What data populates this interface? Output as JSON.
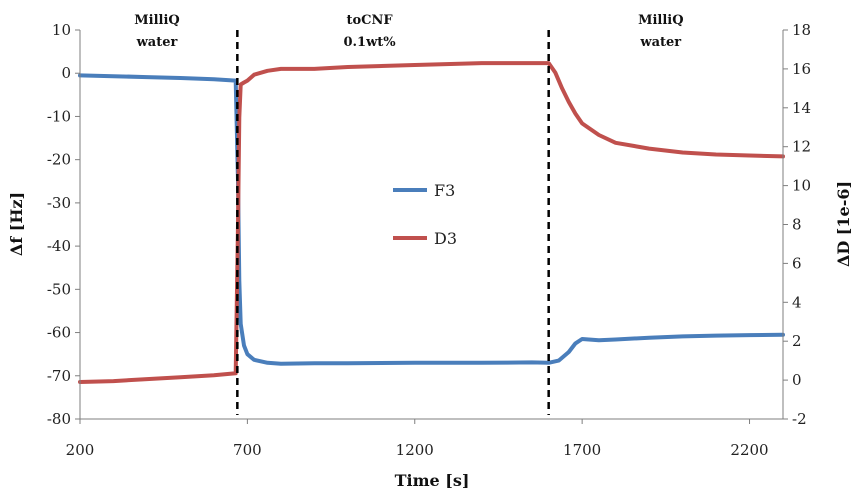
{
  "chart_data": {
    "type": "line",
    "xlabel": "Time [s]",
    "ylabel_left": "Δf [Hz]",
    "ylabel_right": "ΔD [1e-6]",
    "xlim": [
      200,
      2300
    ],
    "ylim_left": [
      -80,
      10
    ],
    "ylim_right": [
      -2,
      18
    ],
    "xticks": [
      200,
      700,
      1200,
      1700,
      2200
    ],
    "yticks_left": [
      10,
      0,
      -10,
      -20,
      -30,
      -40,
      -50,
      -60,
      -70,
      -80
    ],
    "yticks_right": [
      18,
      16,
      14,
      12,
      10,
      8,
      6,
      4,
      2,
      0,
      -2
    ],
    "grid": false,
    "legend_position": "center",
    "phase_labels": [
      {
        "line1": "MilliQ",
        "line2": "water",
        "x": 430
      },
      {
        "line1": "toCNF",
        "line2": "0.1wt%",
        "x": 1065
      },
      {
        "line1": "MilliQ",
        "line2": "water",
        "x": 1935
      }
    ],
    "vlines": [
      670,
      1600
    ],
    "series": [
      {
        "name": "F3",
        "axis": "left",
        "color": "#4a7ebb",
        "x": [
          200,
          300,
          400,
          500,
          600,
          665,
          672,
          676,
          680,
          690,
          700,
          720,
          760,
          800,
          900,
          1000,
          1200,
          1400,
          1550,
          1600,
          1630,
          1660,
          1680,
          1700,
          1750,
          1800,
          1900,
          2000,
          2100,
          2200,
          2300
        ],
        "y": [
          -0.5,
          -0.7,
          -0.9,
          -1.1,
          -1.4,
          -1.7,
          -25,
          -48,
          -58,
          -63,
          -65,
          -66.3,
          -67,
          -67.2,
          -67.1,
          -67.1,
          -67,
          -67,
          -66.9,
          -67,
          -66.5,
          -64.5,
          -62.5,
          -61.5,
          -61.8,
          -61.6,
          -61.2,
          -60.9,
          -60.7,
          -60.6,
          -60.5
        ]
      },
      {
        "name": "D3",
        "axis": "right",
        "color": "#c0504d",
        "x": [
          200,
          300,
          400,
          500,
          600,
          665,
          672,
          676,
          680,
          690,
          700,
          720,
          760,
          800,
          900,
          1000,
          1200,
          1400,
          1550,
          1600,
          1620,
          1640,
          1660,
          1680,
          1700,
          1750,
          1800,
          1900,
          2000,
          2100,
          2200,
          2300
        ],
        "y": [
          -0.1,
          -0.05,
          0.05,
          0.15,
          0.25,
          0.35,
          8,
          13.5,
          15.2,
          15.3,
          15.4,
          15.7,
          15.9,
          16.0,
          16.0,
          16.1,
          16.2,
          16.3,
          16.3,
          16.3,
          15.8,
          15.0,
          14.3,
          13.7,
          13.2,
          12.6,
          12.2,
          11.9,
          11.7,
          11.6,
          11.55,
          11.5
        ]
      }
    ]
  }
}
